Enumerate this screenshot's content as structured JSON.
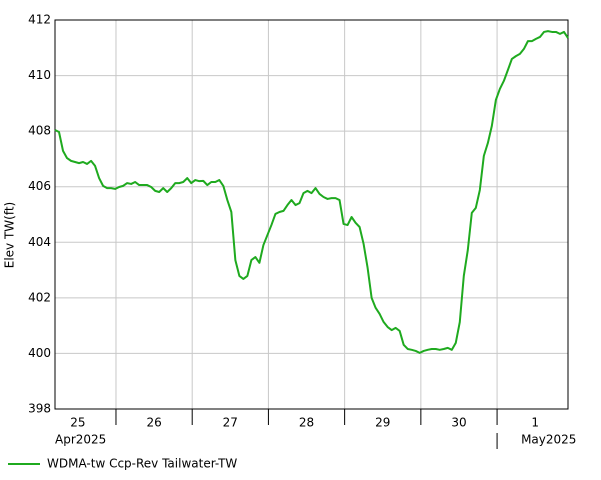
{
  "chart_data": {
    "type": "line",
    "ylabel": "Elev TW(ft)",
    "ylim": [
      398,
      412
    ],
    "yticks": [
      398,
      400,
      402,
      404,
      406,
      408,
      410,
      412
    ],
    "xlim": [
      "2025-04-25T04:48",
      "2025-05-01T22:20"
    ],
    "xticks": [
      "2025-04-26T00:00",
      "2025-04-27T00:00",
      "2025-04-28T00:00",
      "2025-04-29T00:00",
      "2025-04-30T00:00",
      "2025-05-01T00:00"
    ],
    "xtick_labels": [
      {
        "value": "2025-04-25T12:00",
        "label": "25"
      },
      {
        "value": "2025-04-26T12:00",
        "label": "26"
      },
      {
        "value": "2025-04-27T12:00",
        "label": "27"
      },
      {
        "value": "2025-04-28T12:00",
        "label": "28"
      },
      {
        "value": "2025-04-29T12:00",
        "label": "29"
      },
      {
        "value": "2025-04-30T12:00",
        "label": "30"
      },
      {
        "value": "2025-05-01T12:00",
        "label": "1"
      }
    ],
    "month_labels": [
      {
        "value": "2025-04-25T00:00",
        "label": "Apr2025"
      },
      {
        "value": "2025-05-01T00:00",
        "label": "May2025"
      }
    ],
    "grid": true,
    "legend": "bottom-left",
    "series": [
      {
        "name": "WDMA-tw Ccp-Rev Tailwater-TW",
        "color": "#1faa1f",
        "values": [
          408.04,
          407.97,
          407.29,
          407.03,
          406.93,
          406.89,
          406.85,
          406.89,
          406.82,
          406.93,
          406.75,
          406.31,
          406.03,
          405.95,
          405.95,
          405.92,
          405.99,
          406.03,
          406.13,
          406.1,
          406.17,
          406.06,
          406.06,
          406.06,
          405.99,
          405.85,
          405.81,
          405.95,
          405.81,
          405.95,
          406.13,
          406.13,
          406.17,
          406.31,
          406.13,
          406.24,
          406.2,
          406.21,
          406.06,
          406.17,
          406.17,
          406.24,
          406.03,
          405.52,
          405.09,
          403.36,
          402.79,
          402.68,
          402.79,
          403.36,
          403.47,
          403.26,
          403.9,
          404.26,
          404.62,
          405.02,
          405.09,
          405.13,
          405.34,
          405.52,
          405.34,
          405.41,
          405.77,
          405.85,
          405.77,
          405.95,
          405.74,
          405.63,
          405.56,
          405.59,
          405.59,
          405.52,
          404.66,
          404.62,
          404.91,
          404.7,
          404.55,
          403.94,
          403.08,
          402.0,
          401.64,
          401.42,
          401.13,
          400.95,
          400.84,
          400.92,
          400.81,
          400.31,
          400.16,
          400.13,
          400.09,
          400.02,
          400.09,
          400.13,
          400.16,
          400.16,
          400.13,
          400.16,
          400.2,
          400.13,
          400.38,
          401.13,
          402.79,
          403.72,
          405.06,
          405.24,
          405.88,
          407.11,
          407.57,
          408.19,
          409.12,
          409.52,
          409.81,
          410.2,
          410.6,
          410.7,
          410.78,
          410.96,
          411.24,
          411.24,
          411.32,
          411.39,
          411.57,
          411.6,
          411.57,
          411.57,
          411.5,
          411.57,
          411.35
        ]
      }
    ]
  }
}
